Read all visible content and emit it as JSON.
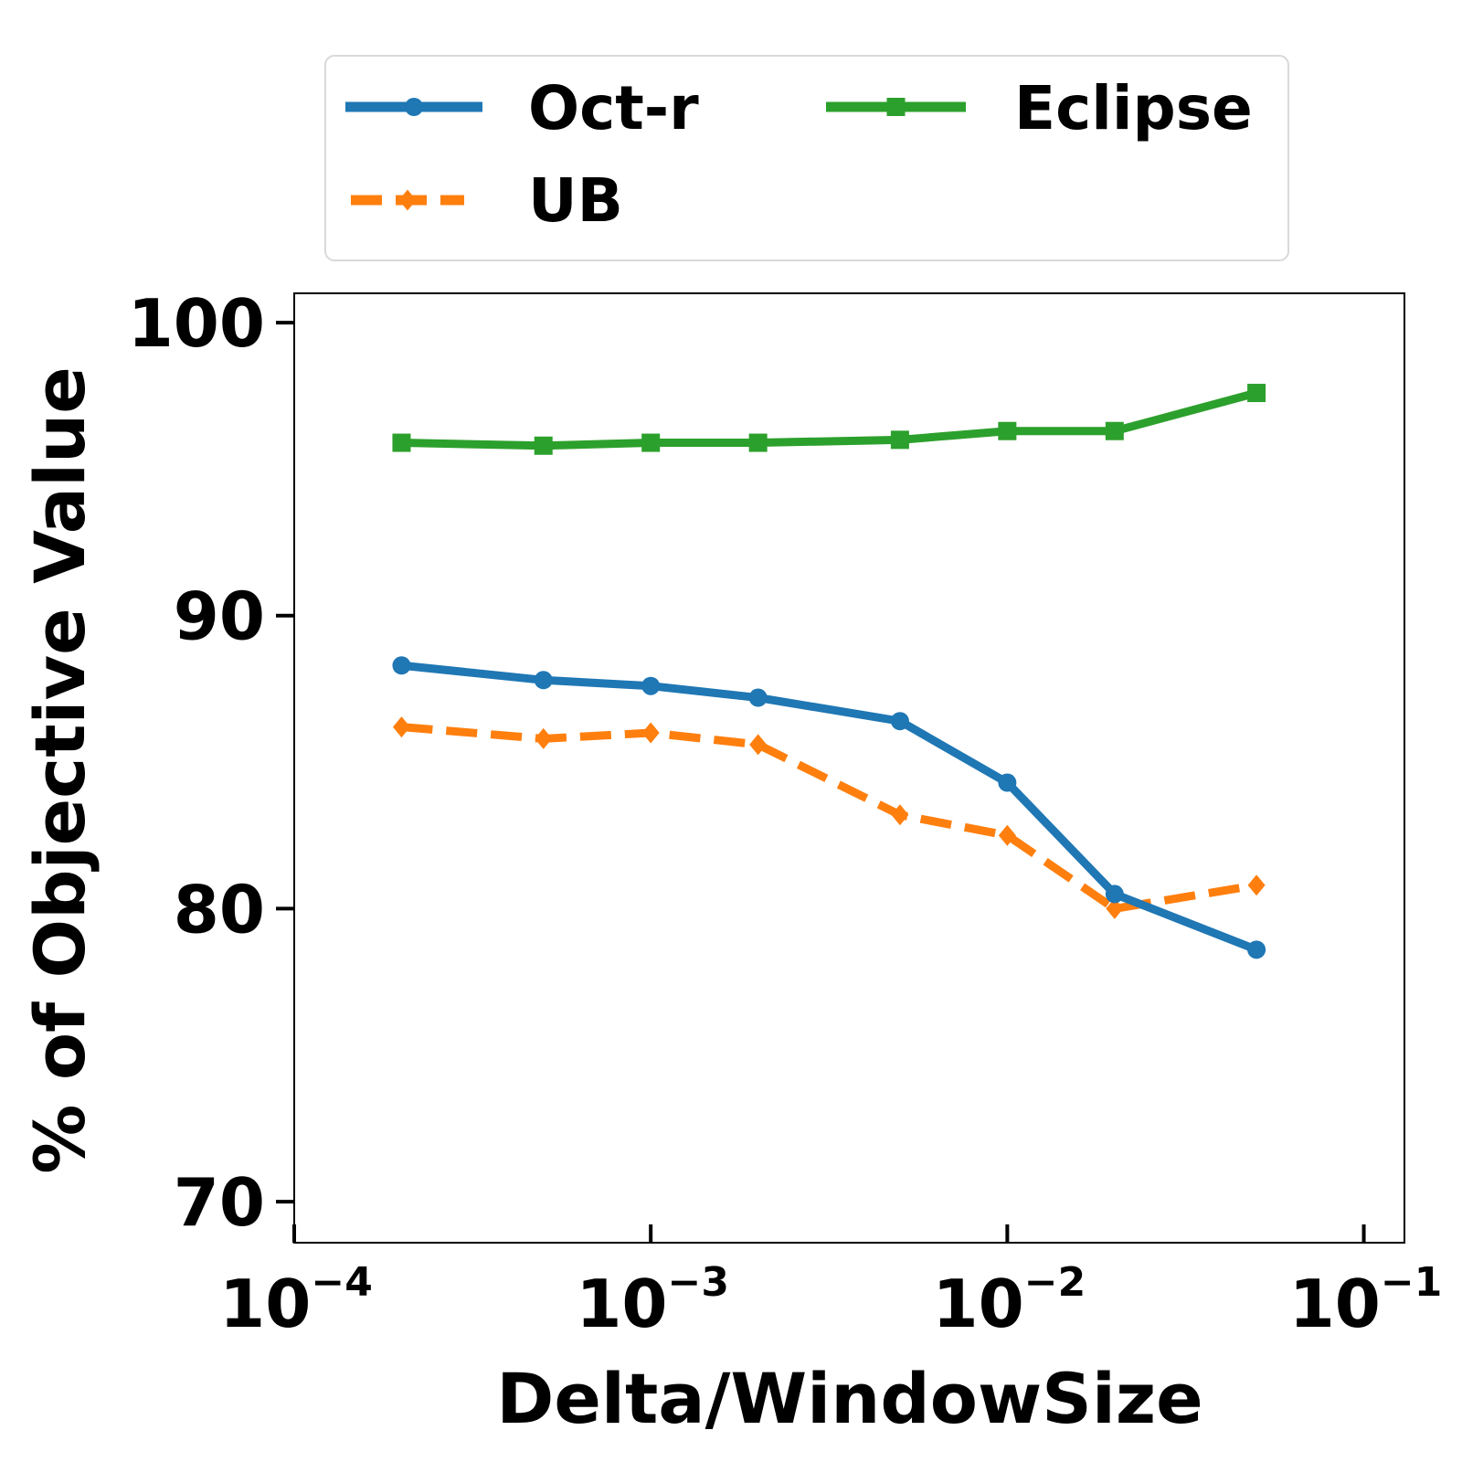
{
  "chart_data": {
    "type": "line",
    "xlabel": "Delta/WindowSize",
    "ylabel": "% of Objective Value",
    "xscale": "log",
    "xlim": [
      0.0001,
      0.13
    ],
    "ylim": [
      68.6,
      101
    ],
    "x_ticks": [
      {
        "value": 0.0001,
        "base": "10",
        "exp": "−4"
      },
      {
        "value": 0.001,
        "base": "10",
        "exp": "−3"
      },
      {
        "value": 0.01,
        "base": "10",
        "exp": "−2"
      },
      {
        "value": 0.1,
        "base": "10",
        "exp": "−1"
      }
    ],
    "y_ticks": [
      {
        "value": 70,
        "label": "70"
      },
      {
        "value": 80,
        "label": "80"
      },
      {
        "value": 90,
        "label": "90"
      },
      {
        "value": 100,
        "label": "100"
      }
    ],
    "grid": false,
    "legend_position": "top (above plot), 2 columns",
    "x": [
      0.0002,
      0.0005,
      0.001,
      0.002,
      0.005,
      0.01,
      0.02,
      0.05
    ],
    "series": [
      {
        "name": "Oct-r",
        "color": "#1f77b4",
        "marker": "circle",
        "style": "solid",
        "values": [
          88.3,
          87.8,
          87.6,
          87.2,
          86.4,
          84.3,
          80.5,
          78.6
        ]
      },
      {
        "name": "UB",
        "color": "#ff7f0e",
        "marker": "diamond",
        "style": "dashed",
        "values": [
          86.2,
          85.8,
          86.0,
          85.6,
          83.2,
          82.5,
          80.0,
          80.8
        ]
      },
      {
        "name": "Eclipse",
        "color": "#2ca02c",
        "marker": "square",
        "style": "solid",
        "values": [
          95.9,
          95.8,
          95.9,
          95.9,
          96.0,
          96.3,
          96.3,
          97.6
        ]
      }
    ]
  }
}
